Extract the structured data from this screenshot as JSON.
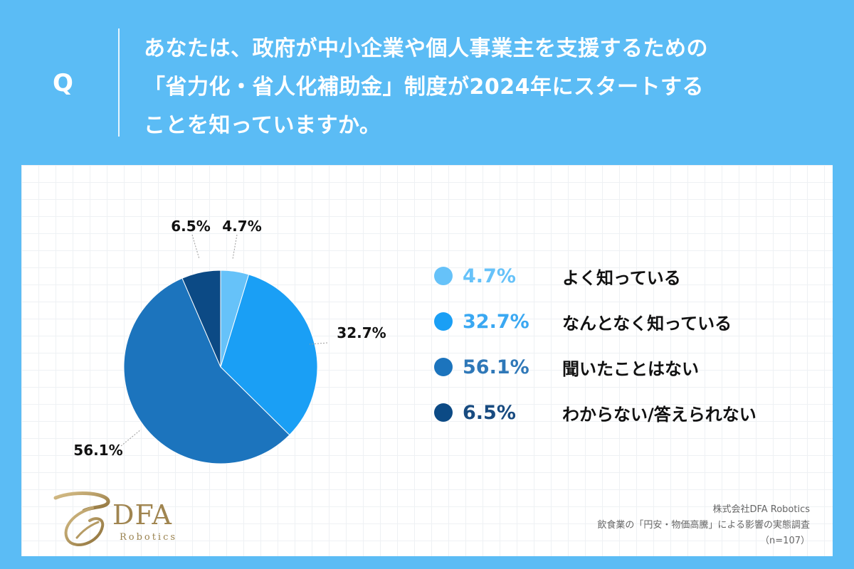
{
  "header": {
    "q_mark": "Q",
    "question": "あなたは、政府が中小企業や個人事業主を支援するための\n「省力化・省人化補助金」制度が2024年にスタートする\nことを知っていますか。"
  },
  "chart_data": {
    "type": "pie",
    "title": "",
    "legend_position": "right",
    "slices": [
      {
        "label": "よく知っている",
        "value": 4.7,
        "display": "4.7%",
        "color": "#66c2f9",
        "text_color": "#66c2f9"
      },
      {
        "label": "なんとなく知っている",
        "value": 32.7,
        "display": "32.7%",
        "color": "#1a9ff5",
        "text_color": "#3aa8f2"
      },
      {
        "label": "聞いたことはない",
        "value": 56.1,
        "display": "56.1%",
        "color": "#1c74bd",
        "text_color": "#2f78b8"
      },
      {
        "label": "わからない/答えられない",
        "value": 6.5,
        "display": "6.5%",
        "color": "#0c4a85",
        "text_color": "#184b80"
      }
    ]
  },
  "brand": {
    "logo_text": "DFA",
    "logo_sub": "Robotics"
  },
  "source": {
    "company": "株式会社DFA Robotics",
    "survey": "飲食業の「円安・物価高騰」による影響の実態調査",
    "sample": "（n=107）"
  },
  "colors": {
    "background": "#5bbcf5",
    "panel": "#ffffff",
    "logo_gold": "#a08550"
  }
}
